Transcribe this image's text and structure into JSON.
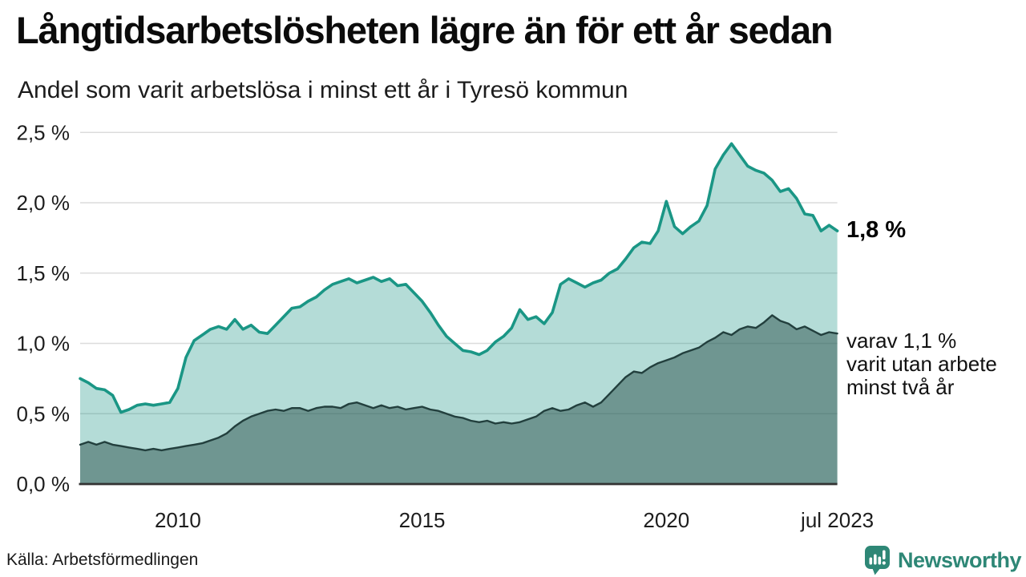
{
  "header": {
    "title": "Långtidsarbetslösheten lägre än för ett år sedan",
    "subtitle": "Andel som varit arbetslösa i minst ett år i Tyresö kommun"
  },
  "footer": {
    "source": "Källa: Arbetsförmedlingen",
    "brand_name": "Newsworthy"
  },
  "colors": {
    "series1_line": "#1A9685",
    "series1_fill": "rgba(26,150,133,0.33)",
    "series2_line": "#223F3D",
    "series2_fill": "rgba(42,79,76,0.5)",
    "grid": "#DCDCDC",
    "axis": "#333333",
    "tick_text": "#1D1D1D",
    "brand": "#2E8776"
  },
  "chart_data": {
    "type": "area",
    "title": "Långtidsarbetslösheten lägre än för ett år sedan",
    "subtitle": "Andel som varit arbetslösa i minst ett år i Tyresö kommun",
    "xlabel": "",
    "ylabel": "",
    "xlim": [
      2008.0,
      2023.5
    ],
    "ylim": [
      0.0,
      2.5
    ],
    "grid": true,
    "legend_position": "none",
    "x_step_years": 0.166667,
    "y_ticks": [
      {
        "value": 2.5,
        "label": "2,5 %"
      },
      {
        "value": 2.0,
        "label": "2,0 %"
      },
      {
        "value": 1.5,
        "label": "1,5 %"
      },
      {
        "value": 1.0,
        "label": "1,0 %"
      },
      {
        "value": 0.5,
        "label": "0,5 %"
      },
      {
        "value": 0.0,
        "label": "0,0 %"
      }
    ],
    "x_ticks": [
      {
        "value": 2010,
        "label": "2010"
      },
      {
        "value": 2015,
        "label": "2015"
      },
      {
        "value": 2020,
        "label": "2020"
      },
      {
        "value": 2023.5,
        "label": "jul 2023"
      }
    ],
    "series": [
      {
        "id": "unemployed-min-one-year",
        "latest_value_pct": 1.8,
        "values": [
          0.75,
          0.72,
          0.68,
          0.67,
          0.63,
          0.51,
          0.53,
          0.56,
          0.57,
          0.56,
          0.57,
          0.58,
          0.68,
          0.9,
          1.02,
          1.06,
          1.1,
          1.12,
          1.1,
          1.17,
          1.1,
          1.13,
          1.08,
          1.07,
          1.13,
          1.19,
          1.25,
          1.26,
          1.3,
          1.33,
          1.38,
          1.42,
          1.44,
          1.46,
          1.43,
          1.45,
          1.47,
          1.44,
          1.46,
          1.41,
          1.42,
          1.36,
          1.3,
          1.22,
          1.13,
          1.05,
          1.0,
          0.95,
          0.94,
          0.92,
          0.95,
          1.01,
          1.05,
          1.11,
          1.24,
          1.17,
          1.19,
          1.14,
          1.22,
          1.42,
          1.46,
          1.43,
          1.4,
          1.43,
          1.45,
          1.5,
          1.53,
          1.6,
          1.68,
          1.72,
          1.71,
          1.8,
          2.01,
          1.83,
          1.78,
          1.83,
          1.87,
          1.98,
          2.24,
          2.34,
          2.42,
          2.34,
          2.26,
          2.23,
          2.21,
          2.16,
          2.08,
          2.1,
          2.03,
          1.92,
          1.91,
          1.8,
          1.84,
          1.8
        ]
      },
      {
        "id": "unemployed-min-two-years",
        "latest_value_pct": 1.1,
        "values": [
          0.28,
          0.3,
          0.28,
          0.3,
          0.28,
          0.27,
          0.26,
          0.25,
          0.24,
          0.25,
          0.24,
          0.25,
          0.26,
          0.27,
          0.28,
          0.29,
          0.31,
          0.33,
          0.36,
          0.41,
          0.45,
          0.48,
          0.5,
          0.52,
          0.53,
          0.52,
          0.54,
          0.54,
          0.52,
          0.54,
          0.55,
          0.55,
          0.54,
          0.57,
          0.58,
          0.56,
          0.54,
          0.56,
          0.54,
          0.55,
          0.53,
          0.54,
          0.55,
          0.53,
          0.52,
          0.5,
          0.48,
          0.47,
          0.45,
          0.44,
          0.45,
          0.43,
          0.44,
          0.43,
          0.44,
          0.46,
          0.48,
          0.52,
          0.54,
          0.52,
          0.53,
          0.56,
          0.58,
          0.55,
          0.58,
          0.64,
          0.7,
          0.76,
          0.8,
          0.79,
          0.83,
          0.86,
          0.88,
          0.9,
          0.93,
          0.95,
          0.97,
          1.01,
          1.04,
          1.08,
          1.06,
          1.1,
          1.12,
          1.11,
          1.15,
          1.2,
          1.16,
          1.14,
          1.1,
          1.12,
          1.09,
          1.06,
          1.08,
          1.07
        ]
      }
    ],
    "annotations": {
      "latest_total": "1,8 %",
      "detail_lines": [
        "varav 1,1 %",
        "varit utan arbete",
        "minst två år"
      ]
    }
  }
}
